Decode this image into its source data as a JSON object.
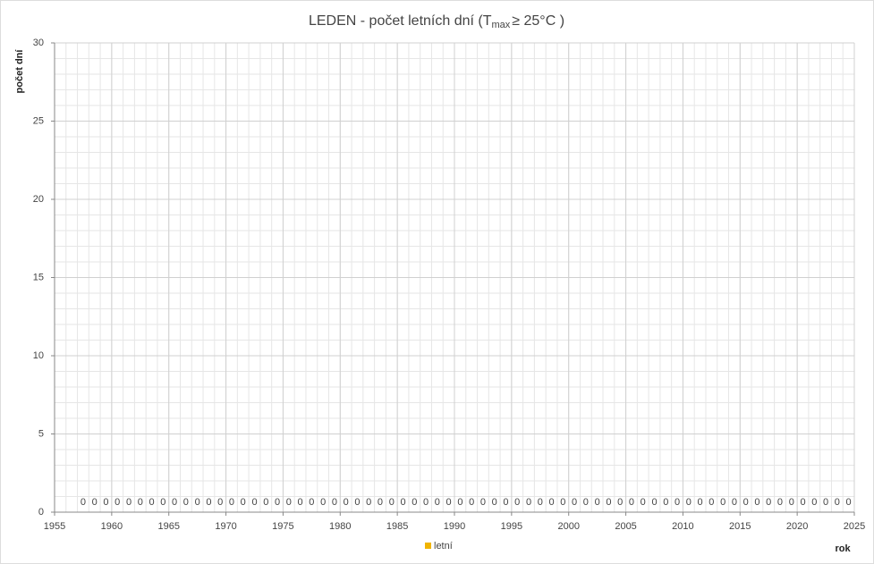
{
  "chart_data": {
    "type": "bar",
    "title": "LEDEN - počet letních dní (T",
    "title_subscript": "max",
    "title_suffix": "≥ 25°C )",
    "ylabel": "počet dní",
    "xlabel": "rok",
    "x": [
      1957,
      1958,
      1959,
      1960,
      1961,
      1962,
      1963,
      1964,
      1965,
      1966,
      1967,
      1968,
      1969,
      1970,
      1971,
      1972,
      1973,
      1974,
      1975,
      1976,
      1977,
      1978,
      1979,
      1980,
      1981,
      1982,
      1983,
      1984,
      1985,
      1986,
      1987,
      1988,
      1989,
      1990,
      1991,
      1992,
      1993,
      1994,
      1995,
      1996,
      1997,
      1998,
      1999,
      2000,
      2001,
      2002,
      2003,
      2004,
      2005,
      2006,
      2007,
      2008,
      2009,
      2010,
      2011,
      2012,
      2013,
      2014,
      2015,
      2016,
      2017,
      2018,
      2019,
      2020,
      2021,
      2022,
      2023,
      2024
    ],
    "series": [
      {
        "name": "letní",
        "color": "#f0b400",
        "values": [
          0,
          0,
          0,
          0,
          0,
          0,
          0,
          0,
          0,
          0,
          0,
          0,
          0,
          0,
          0,
          0,
          0,
          0,
          0,
          0,
          0,
          0,
          0,
          0,
          0,
          0,
          0,
          0,
          0,
          0,
          0,
          0,
          0,
          0,
          0,
          0,
          0,
          0,
          0,
          0,
          0,
          0,
          0,
          0,
          0,
          0,
          0,
          0,
          0,
          0,
          0,
          0,
          0,
          0,
          0,
          0,
          0,
          0,
          0,
          0,
          0,
          0,
          0,
          0,
          0,
          0,
          0,
          0
        ]
      }
    ],
    "xlim": [
      1955,
      2025
    ],
    "xticks": [
      1955,
      1960,
      1965,
      1970,
      1975,
      1980,
      1985,
      1990,
      1995,
      2000,
      2005,
      2010,
      2015,
      2020,
      2025
    ],
    "ylim": [
      0,
      30
    ],
    "yticks": [
      0,
      5,
      10,
      15,
      20,
      25,
      30
    ],
    "grid": true,
    "minor_step": 1,
    "legend": "bottom"
  }
}
